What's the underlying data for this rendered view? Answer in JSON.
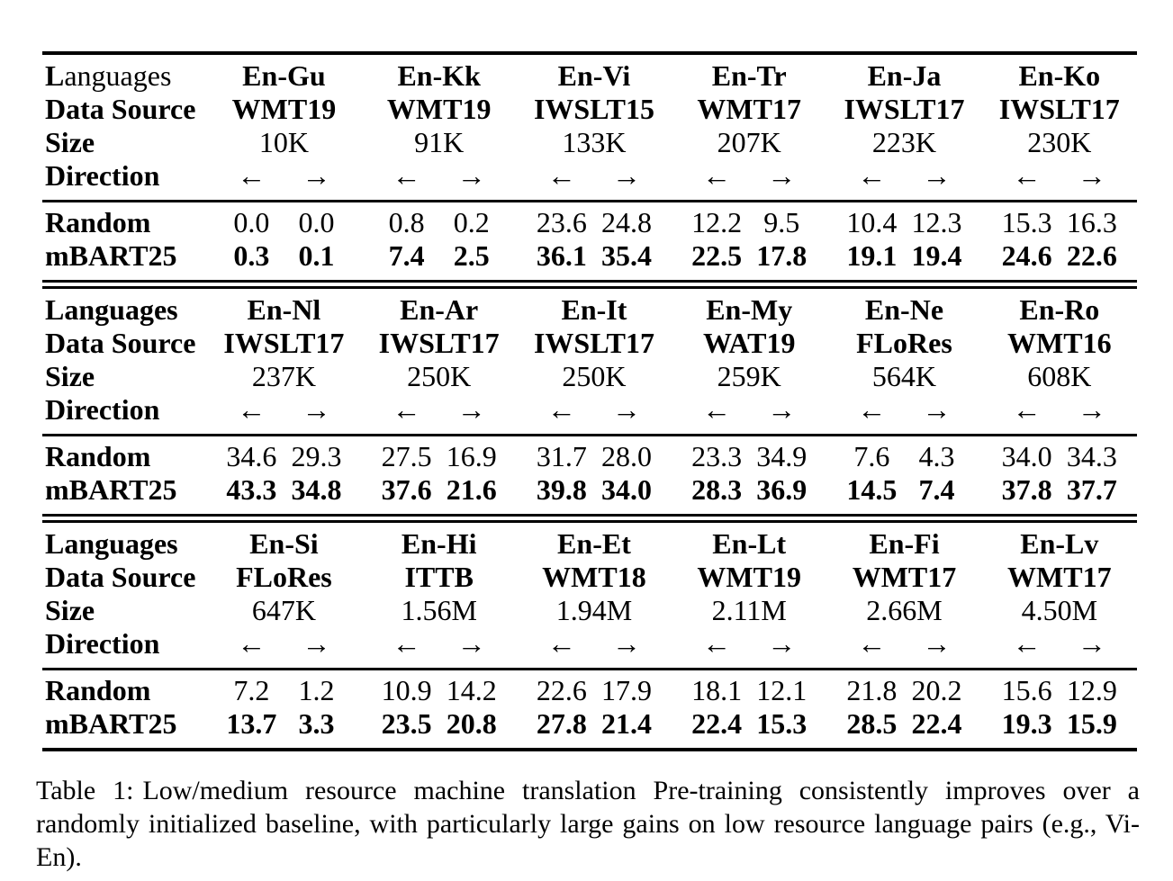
{
  "page": {
    "background_color": "#ffffff",
    "text_color": "#000000",
    "rule_color": "#000000"
  },
  "table": {
    "row_labels": {
      "data_source": "Data Source",
      "size": "Size",
      "direction": "Direction",
      "random": "Random",
      "mbart25": "mBART25"
    },
    "direction": {
      "left": "←",
      "right": "→"
    },
    "sections": [
      {
        "languages_label_bold": "L",
        "languages_label_rest": "anguages",
        "pairs": [
          {
            "name": "En-Gu",
            "source": "WMT19",
            "size": "10K",
            "random": [
              "0.0",
              "0.0"
            ],
            "mbart25": [
              "0.3",
              "0.1"
            ]
          },
          {
            "name": "En-Kk",
            "source": "WMT19",
            "size": "91K",
            "random": [
              "0.8",
              "0.2"
            ],
            "mbart25": [
              "7.4",
              "2.5"
            ]
          },
          {
            "name": "En-Vi",
            "source": "IWSLT15",
            "size": "133K",
            "random": [
              "23.6",
              "24.8"
            ],
            "mbart25": [
              "36.1",
              "35.4"
            ]
          },
          {
            "name": "En-Tr",
            "source": "WMT17",
            "size": "207K",
            "random": [
              "12.2",
              "9.5"
            ],
            "mbart25": [
              "22.5",
              "17.8"
            ]
          },
          {
            "name": "En-Ja",
            "source": "IWSLT17",
            "size": "223K",
            "random": [
              "10.4",
              "12.3"
            ],
            "mbart25": [
              "19.1",
              "19.4"
            ]
          },
          {
            "name": "En-Ko",
            "source": "IWSLT17",
            "size": "230K",
            "random": [
              "15.3",
              "16.3"
            ],
            "mbart25": [
              "24.6",
              "22.6"
            ]
          }
        ]
      },
      {
        "languages_label_bold": "Languages",
        "languages_label_rest": "",
        "pairs": [
          {
            "name": "En-Nl",
            "source": "IWSLT17",
            "size": "237K",
            "random": [
              "34.6",
              "29.3"
            ],
            "mbart25": [
              "43.3",
              "34.8"
            ]
          },
          {
            "name": "En-Ar",
            "source": "IWSLT17",
            "size": "250K",
            "random": [
              "27.5",
              "16.9"
            ],
            "mbart25": [
              "37.6",
              "21.6"
            ]
          },
          {
            "name": "En-It",
            "source": "IWSLT17",
            "size": "250K",
            "random": [
              "31.7",
              "28.0"
            ],
            "mbart25": [
              "39.8",
              "34.0"
            ]
          },
          {
            "name": "En-My",
            "source": "WAT19",
            "size": "259K",
            "random": [
              "23.3",
              "34.9"
            ],
            "mbart25": [
              "28.3",
              "36.9"
            ]
          },
          {
            "name": "En-Ne",
            "source": "FLoRes",
            "size": "564K",
            "random": [
              "7.6",
              "4.3"
            ],
            "mbart25": [
              "14.5",
              "7.4"
            ]
          },
          {
            "name": "En-Ro",
            "source": "WMT16",
            "size": "608K",
            "random": [
              "34.0",
              "34.3"
            ],
            "mbart25": [
              "37.8",
              "37.7"
            ]
          }
        ]
      },
      {
        "languages_label_bold": "Languages",
        "languages_label_rest": "",
        "pairs": [
          {
            "name": "En-Si",
            "source": "FLoRes",
            "size": "647K",
            "random": [
              "7.2",
              "1.2"
            ],
            "mbart25": [
              "13.7",
              "3.3"
            ]
          },
          {
            "name": "En-Hi",
            "source": "ITTB",
            "size": "1.56M",
            "random": [
              "10.9",
              "14.2"
            ],
            "mbart25": [
              "23.5",
              "20.8"
            ]
          },
          {
            "name": "En-Et",
            "source": "WMT18",
            "size": "1.94M",
            "random": [
              "22.6",
              "17.9"
            ],
            "mbart25": [
              "27.8",
              "21.4"
            ]
          },
          {
            "name": "En-Lt",
            "source": "WMT19",
            "size": "2.11M",
            "random": [
              "18.1",
              "12.1"
            ],
            "mbart25": [
              "22.4",
              "15.3"
            ]
          },
          {
            "name": "En-Fi",
            "source": "WMT17",
            "size": "2.66M",
            "random": [
              "21.8",
              "20.2"
            ],
            "mbart25": [
              "28.5",
              "22.4"
            ]
          },
          {
            "name": "En-Lv",
            "source": "WMT17",
            "size": "4.50M",
            "random": [
              "15.6",
              "12.9"
            ],
            "mbart25": [
              "19.3",
              "15.9"
            ]
          }
        ]
      }
    ]
  },
  "caption": {
    "label": "Table 1:",
    "text": "Low/medium resource machine translation Pre-training consistently improves over a randomly initialized baseline, with particularly large gains on low resource language pairs (e.g., Vi-En)."
  }
}
